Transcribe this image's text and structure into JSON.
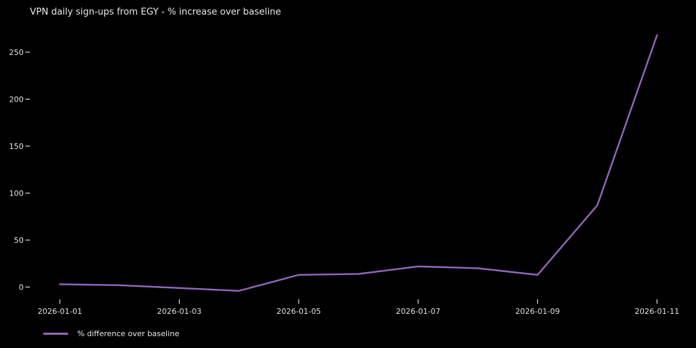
{
  "colors": {
    "background": "#000000",
    "text": "#e8e8e8",
    "tick": "#dcdcdc",
    "line": "#9467bd"
  },
  "legend": {
    "label": "% difference over baseline"
  },
  "chart_data": {
    "type": "line",
    "title": "VPN daily sign-ups from EGY - % increase over baseline",
    "x": [
      "2026-01-01",
      "2026-01-02",
      "2026-01-03",
      "2026-01-04",
      "2026-01-05",
      "2026-01-06",
      "2026-01-07",
      "2026-01-08",
      "2026-01-09",
      "2026-01-10",
      "2026-01-11"
    ],
    "series": [
      {
        "name": "% difference over baseline",
        "color": "#9467bd",
        "values": [
          3,
          2,
          -1,
          -4,
          13,
          14,
          22,
          20,
          13,
          87,
          268
        ]
      }
    ],
    "xtick_labels": [
      "2026-01-01",
      "2026-01-03",
      "2026-01-05",
      "2026-01-07",
      "2026-01-09",
      "2026-01-11"
    ],
    "ytick_values": [
      0,
      50,
      100,
      150,
      200,
      250
    ],
    "ylim": [
      -13,
      285
    ],
    "xlabel": "",
    "ylabel": "",
    "grid": false,
    "legend_position": "lower-left"
  }
}
